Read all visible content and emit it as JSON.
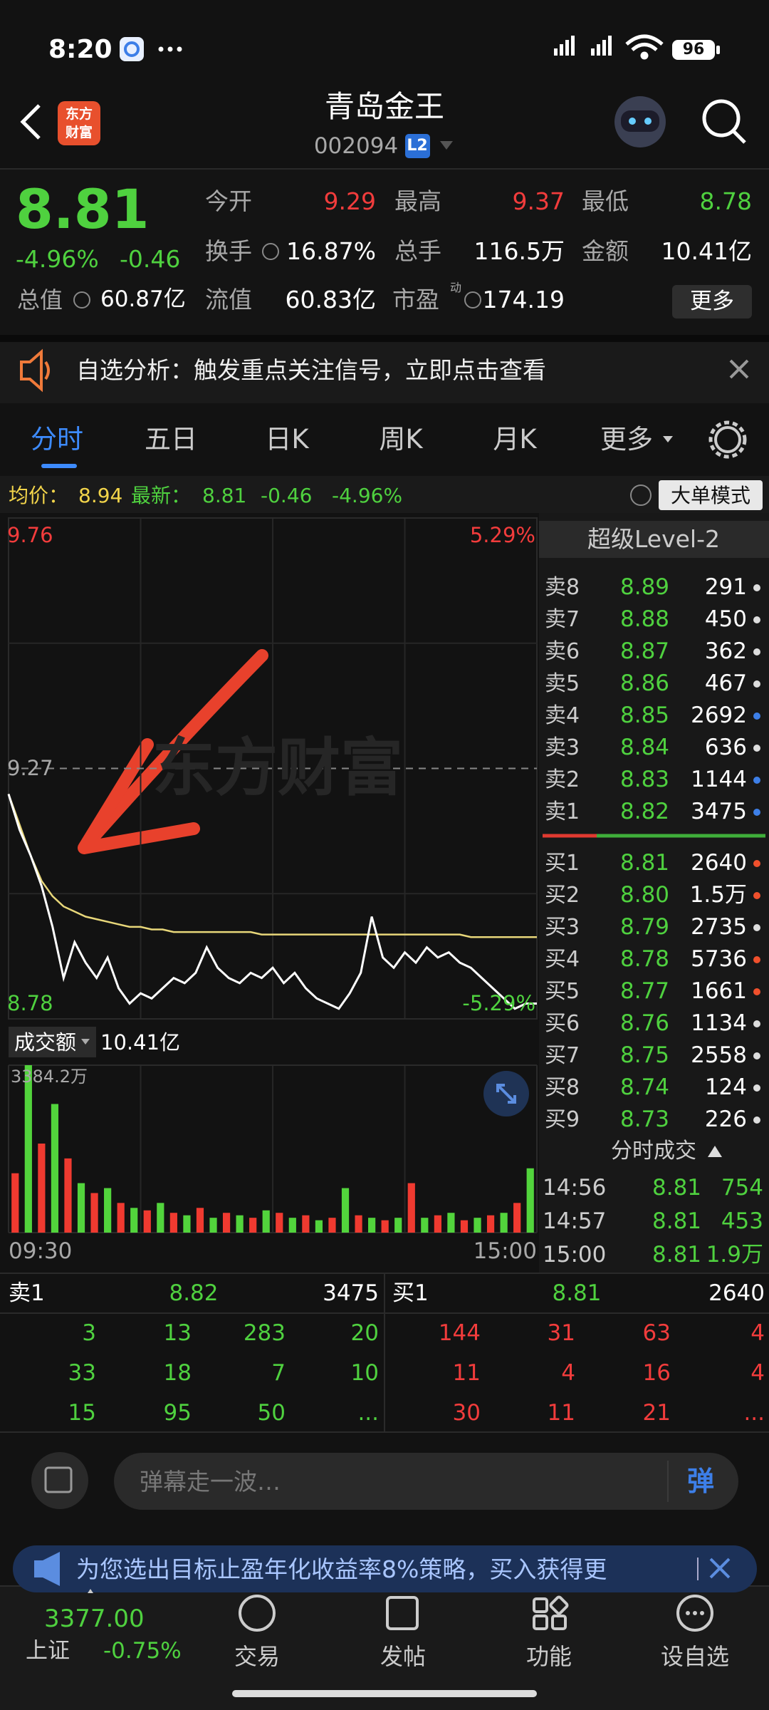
{
  "status_bar": {
    "time": "8:20",
    "battery": "96"
  },
  "header": {
    "title": "青岛金王",
    "code": "002094",
    "badge": "L2",
    "logo": [
      "东方",
      "财富"
    ]
  },
  "quote": {
    "price": "8.81",
    "change_pct": "-4.96%",
    "change": "-0.46",
    "total_label": "总值",
    "total_value": "60.87亿",
    "pe_tag": "动",
    "more": "更多",
    "stats": [
      {
        "label": "今开",
        "value": "9.29",
        "color": "#f23c3c"
      },
      {
        "label": "最高",
        "value": "9.37",
        "color": "#f23c3c"
      },
      {
        "label": "最低",
        "value": "8.78",
        "color": "#4fd13f"
      },
      {
        "label": "换手",
        "value": "16.87%",
        "color": "#ffffff"
      },
      {
        "label": "总手",
        "value": "116.5万",
        "color": "#ffffff"
      },
      {
        "label": "金额",
        "value": "10.41亿",
        "color": "#ffffff"
      },
      {
        "label": "流值",
        "value": "60.83亿",
        "color": "#ffffff"
      },
      {
        "label": "市盈",
        "value": "174.19",
        "color": "#ffffff"
      }
    ]
  },
  "notice": {
    "text": "自选分析：触发重点关注信号，立即点击查看"
  },
  "tabs": [
    "分时",
    "五日",
    "日K",
    "周K",
    "月K",
    "更多"
  ],
  "info_bar": {
    "avg_label": "均价：",
    "avg": "8.94",
    "last_label": "最新：",
    "last": "8.81",
    "change": "-0.46",
    "change_pct": "-4.96%",
    "mode_button": "大单模式"
  },
  "watermark": "东方财富",
  "chart_data": [
    {
      "type": "line",
      "xlim": [
        0,
        240
      ],
      "x": [
        0,
        5,
        10,
        15,
        20,
        25,
        30,
        35,
        40,
        45,
        50,
        55,
        60,
        65,
        70,
        75,
        80,
        85,
        90,
        95,
        100,
        105,
        110,
        115,
        120,
        125,
        130,
        135,
        140,
        145,
        150,
        155,
        160,
        165,
        170,
        175,
        180,
        185,
        190,
        195,
        200,
        205,
        210,
        215,
        220,
        225,
        230,
        235,
        240
      ],
      "series": [
        {
          "color": "#ffffff",
          "values": [
            9.22,
            9.15,
            9.1,
            9.04,
            8.96,
            8.86,
            8.93,
            8.89,
            8.86,
            8.9,
            8.84,
            8.81,
            8.83,
            8.82,
            8.84,
            8.86,
            8.85,
            8.87,
            8.92,
            8.88,
            8.86,
            8.85,
            8.87,
            8.86,
            8.88,
            8.85,
            8.87,
            8.84,
            8.82,
            8.81,
            8.8,
            8.83,
            8.87,
            8.98,
            8.9,
            8.88,
            8.91,
            8.89,
            8.92,
            8.9,
            8.91,
            8.89,
            8.88,
            8.86,
            8.84,
            8.82,
            8.8,
            8.81,
            8.81
          ]
        },
        {
          "color": "#e8d77a",
          "values": [
            9.22,
            9.16,
            9.1,
            9.05,
            9.02,
            9.0,
            8.99,
            8.98,
            8.975,
            8.97,
            8.965,
            8.96,
            8.96,
            8.955,
            8.955,
            8.95,
            8.95,
            8.95,
            8.95,
            8.95,
            8.95,
            8.95,
            8.95,
            8.945,
            8.945,
            8.945,
            8.945,
            8.945,
            8.945,
            8.945,
            8.945,
            8.945,
            8.945,
            8.945,
            8.945,
            8.945,
            8.945,
            8.945,
            8.945,
            8.945,
            8.945,
            8.945,
            8.94,
            8.94,
            8.94,
            8.94,
            8.94,
            8.94,
            8.94
          ]
        }
      ],
      "ylim": [
        8.78,
        9.76
      ],
      "yticks": [
        9.76,
        9.27,
        8.78
      ],
      "y2lim": [
        -5.29,
        5.29
      ],
      "y2ticks": [
        {
          "value": 5.29,
          "label": "5.29%"
        },
        {
          "value": -5.29,
          "label": "-5.29%"
        }
      ],
      "up_color": "#f23c3c",
      "down_color": "#4fd13f",
      "grid": true
    },
    {
      "type": "bar",
      "xlim": [
        0,
        240
      ],
      "x": [
        3,
        9,
        15,
        21,
        27,
        33,
        39,
        45,
        51,
        57,
        63,
        69,
        75,
        81,
        87,
        93,
        99,
        105,
        111,
        117,
        123,
        129,
        135,
        141,
        147,
        153,
        159,
        165,
        171,
        177,
        183,
        189,
        195,
        201,
        207,
        213,
        219,
        225,
        231,
        237
      ],
      "values": [
        1200,
        3384.2,
        1800,
        2600,
        1500,
        1000,
        800,
        900,
        600,
        500,
        450,
        600,
        400,
        350,
        500,
        300,
        400,
        350,
        300,
        450,
        400,
        300,
        350,
        250,
        300,
        900,
        350,
        300,
        250,
        300,
        1000,
        300,
        350,
        400,
        250,
        300,
        350,
        400,
        600,
        1300
      ],
      "colors": [
        "#f03a30",
        "#52d43c"
      ],
      "ylim": [
        0,
        3384.2
      ],
      "yticks": [
        {
          "value": 3384.2,
          "label": "3384.2万"
        }
      ],
      "xticks": [
        {
          "value": 0,
          "label": "09:30"
        },
        {
          "value": 240,
          "label": "15:00"
        }
      ]
    }
  ],
  "volume_panel": {
    "label": "成交额",
    "total": "10.41亿"
  },
  "order_book": {
    "title": "超级Level-2",
    "asks": [
      {
        "label": "卖8",
        "price": "8.89",
        "volume": "291",
        "dot": "#dddddd"
      },
      {
        "label": "卖7",
        "price": "8.88",
        "volume": "450",
        "dot": "#dddddd"
      },
      {
        "label": "卖6",
        "price": "8.87",
        "volume": "362",
        "dot": "#dddddd"
      },
      {
        "label": "卖5",
        "price": "8.86",
        "volume": "467",
        "dot": "#dddddd"
      },
      {
        "label": "卖4",
        "price": "8.85",
        "volume": "2692",
        "dot": "#3d7fe8"
      },
      {
        "label": "卖3",
        "price": "8.84",
        "volume": "636",
        "dot": "#dddddd"
      },
      {
        "label": "卖2",
        "price": "8.83",
        "volume": "1144",
        "dot": "#3d7fe8"
      },
      {
        "label": "卖1",
        "price": "8.82",
        "volume": "3475",
        "dot": "#3d7fe8"
      }
    ],
    "bids": [
      {
        "label": "买1",
        "price": "8.81",
        "volume": "2640",
        "dot": "#f0502c"
      },
      {
        "label": "买2",
        "price": "8.80",
        "volume": "1.5万",
        "dot": "#f0502c"
      },
      {
        "label": "买3",
        "price": "8.79",
        "volume": "2735",
        "dot": "#dddddd"
      },
      {
        "label": "买4",
        "price": "8.78",
        "volume": "5736",
        "dot": "#f0502c"
      },
      {
        "label": "买5",
        "price": "8.77",
        "volume": "1661",
        "dot": "#f0502c"
      },
      {
        "label": "买6",
        "price": "8.76",
        "volume": "1134",
        "dot": "#dddddd"
      },
      {
        "label": "买7",
        "price": "8.75",
        "volume": "2558",
        "dot": "#dddddd"
      },
      {
        "label": "买8",
        "price": "8.74",
        "volume": "124",
        "dot": "#dddddd"
      },
      {
        "label": "买9",
        "price": "8.73",
        "volume": "226",
        "dot": "#dddddd"
      }
    ]
  },
  "trades": {
    "title": "分时成交",
    "rows": [
      [
        "14:56",
        "8.81",
        "754"
      ],
      [
        "14:57",
        "8.81",
        "453"
      ],
      [
        "15:00",
        "8.81",
        "1.9万"
      ]
    ]
  },
  "queue": {
    "ask": {
      "label": "卖1",
      "price": "8.82",
      "volume": "3475",
      "orders": [
        "3",
        "13",
        "283",
        "20",
        "33",
        "18",
        "7",
        "10",
        "15",
        "95",
        "50",
        "..."
      ]
    },
    "bid": {
      "label": "买1",
      "price": "8.81",
      "volume": "2640",
      "orders": [
        "144",
        "31",
        "63",
        "4",
        "11",
        "4",
        "16",
        "4",
        "30",
        "11",
        "21",
        "..."
      ]
    }
  },
  "comment": {
    "placeholder": "弹幕走一波…",
    "button": "弹"
  },
  "banner": {
    "text": "为您选出目标止盈年化收益率8%策略，买入获得更"
  },
  "nav": {
    "index_value": "3377.00",
    "index_name": "上证",
    "index_change": "-0.75%",
    "items": [
      "交易",
      "发帖",
      "功能",
      "设自选"
    ]
  }
}
